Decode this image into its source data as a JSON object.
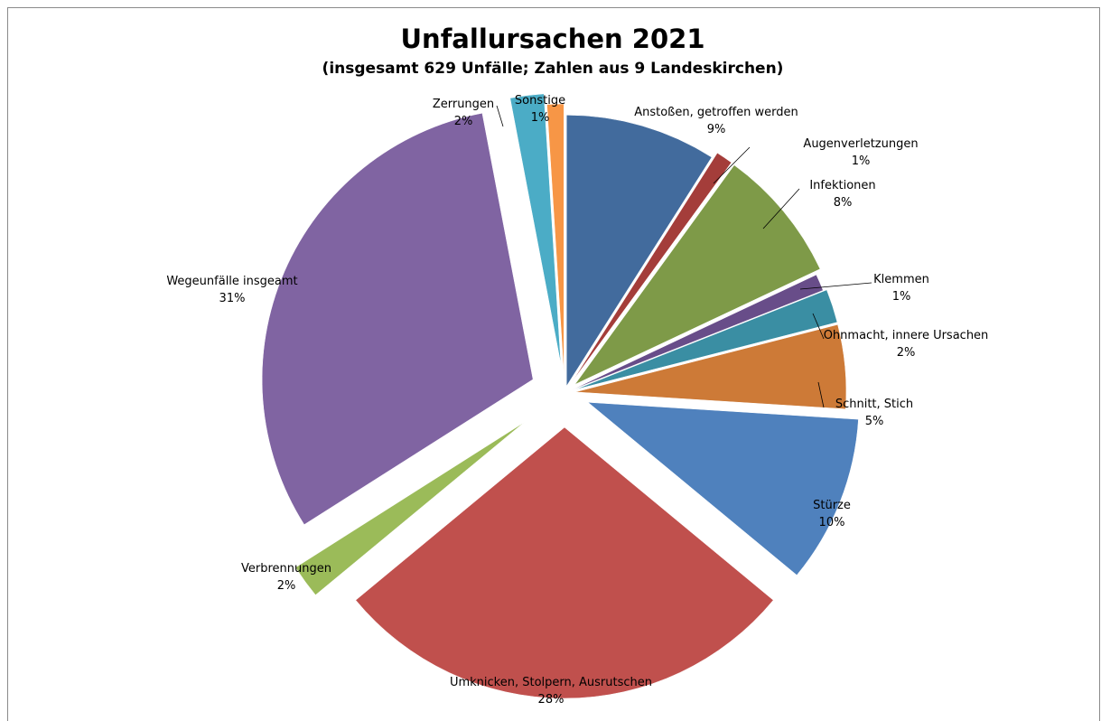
{
  "chart_data": {
    "type": "pie",
    "title": "Unfallursachen 2021",
    "subtitle": "(insgesamt 629 Unfälle; Zahlen aus 9 Landeskirchen)",
    "exploded": true,
    "legend": "none",
    "slices": [
      {
        "label": "Anstoßen, getroffen werden",
        "value": 9,
        "value_label": "9%",
        "color": "#426B9D"
      },
      {
        "label": "Augenverletzungen",
        "value": 1,
        "value_label": "1%",
        "color": "#A43D3A"
      },
      {
        "label": "Infektionen",
        "value": 8,
        "value_label": "8%",
        "color": "#7E9A48"
      },
      {
        "label": "Klemmen",
        "value": 1,
        "value_label": "1%",
        "color": "#684D89"
      },
      {
        "label": "Ohnmacht, innere Ursachen",
        "value": 2,
        "value_label": "2%",
        "color": "#3A8EA3"
      },
      {
        "label": "Schnitt, Stich",
        "value": 5,
        "value_label": "5%",
        "color": "#CD7A37"
      },
      {
        "label": "Stürze",
        "value": 10,
        "value_label": "10%",
        "color": "#4F81BD"
      },
      {
        "label": "Umknicken, Stolpern, Ausrutschen",
        "value": 28,
        "value_label": "28%",
        "color": "#C0504D"
      },
      {
        "label": "Verbrennungen",
        "value": 2,
        "value_label": "2%",
        "color": "#9BBB59"
      },
      {
        "label": "Wegeunfälle insgeamt",
        "value": 31,
        "value_label": "31%",
        "color": "#8064A2"
      },
      {
        "label": "Zerrungen",
        "value": 2,
        "value_label": "2%",
        "color": "#4BACC6"
      },
      {
        "label": "Sonstige",
        "value": 1,
        "value_label": "1%",
        "color": "#F79646"
      }
    ]
  }
}
